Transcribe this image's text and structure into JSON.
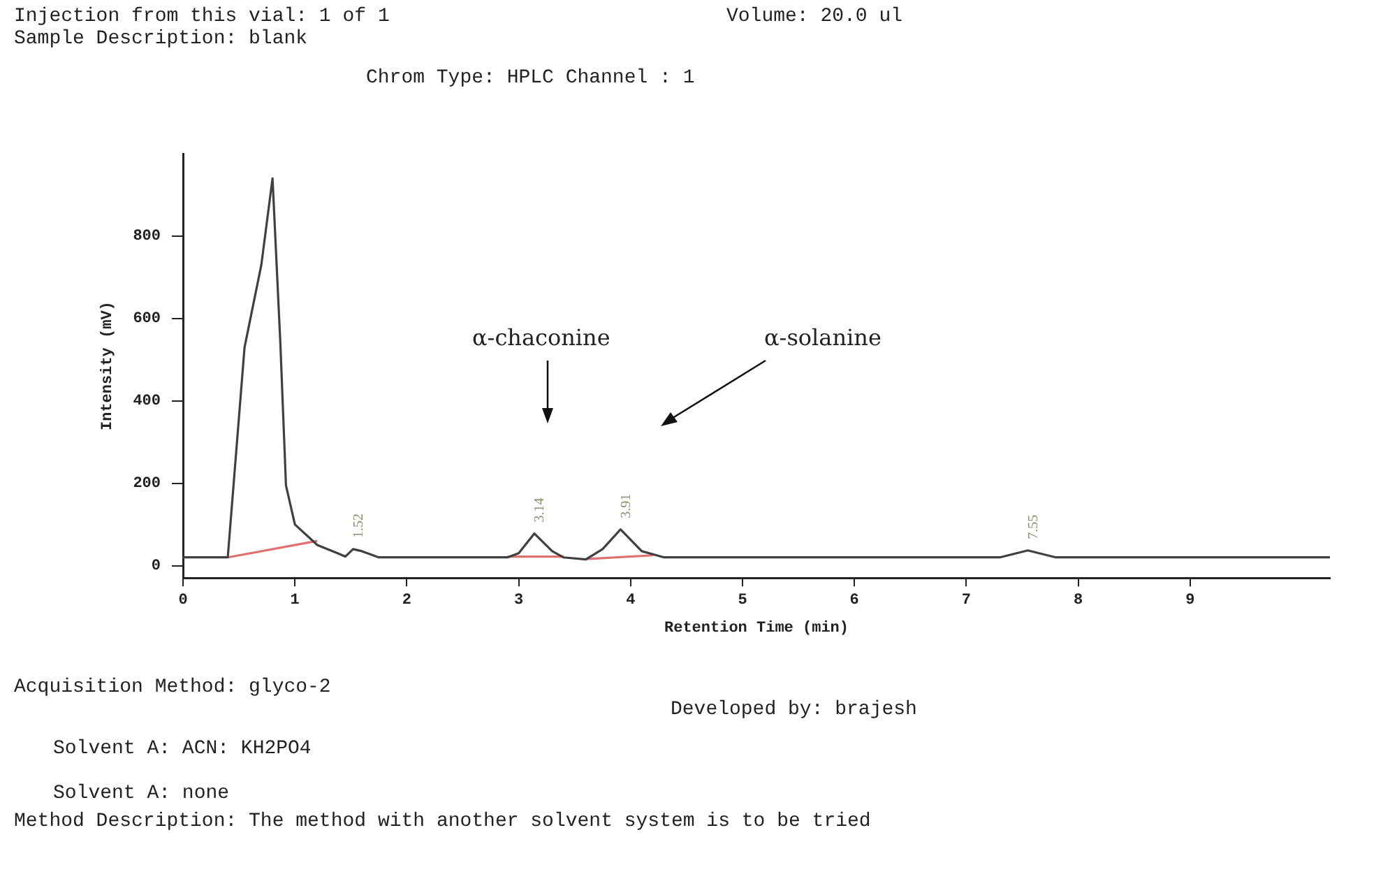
{
  "chart_data": {
    "type": "line",
    "title": "Chrom Type: HPLC Channel : 1",
    "xlabel": "Retention Time (min)",
    "ylabel": "Intensity (mV)",
    "xlim": [
      0,
      10.25
    ],
    "ylim": [
      -30,
      1000
    ],
    "xticks": [
      0,
      1,
      2,
      3,
      4,
      5,
      6,
      7,
      8,
      9
    ],
    "yticks": [
      0,
      200,
      400,
      600,
      800
    ],
    "grid": false,
    "legend": false,
    "marker": "none",
    "line_style": "solid",
    "series": [
      {
        "color": "#404040",
        "x": [
          0,
          0.4,
          0.55,
          0.7,
          0.8,
          0.87,
          0.92,
          1.0,
          1.2,
          1.4,
          1.45,
          1.52,
          1.6,
          1.75,
          2.9,
          3.0,
          3.14,
          3.3,
          3.4,
          3.6,
          3.75,
          3.91,
          4.1,
          4.3,
          7.3,
          7.55,
          7.8,
          10.25
        ],
        "values": [
          20,
          20,
          530,
          730,
          940,
          540,
          195,
          100,
          50,
          28,
          22,
          40,
          35,
          20,
          20,
          30,
          78,
          35,
          20,
          15,
          40,
          88,
          35,
          20,
          20,
          37,
          20,
          20
        ]
      },
      {
        "color": "#e07070",
        "x": [
          0.4,
          1.2,
          1.21,
          2.9,
          3.4,
          3.41,
          3.6,
          4.2
        ],
        "values": [
          20,
          60,
          null,
          22,
          22,
          null,
          16,
          25
        ]
      }
    ],
    "annotations": [
      "Injection from this vial: 1 of 1",
      "Volume: 20.0 ul",
      "Sample Description: blank",
      "Acquisition Method: glyco-2",
      "Developed by: brajesh",
      "Solvent A: ACN: KH2PO4",
      "Solvent A: none",
      "Method Description: The method with another solvent system is to be tried",
      "α-chaconine",
      "α-solanine",
      {
        "text": "1.52",
        "x": 1.52,
        "y": 40
      },
      {
        "text": "3.14",
        "x": 3.14,
        "y": 78
      },
      {
        "text": "3.91",
        "x": 3.91,
        "y": 88
      },
      {
        "text": "7.55",
        "x": 7.55,
        "y": 37
      }
    ]
  }
}
